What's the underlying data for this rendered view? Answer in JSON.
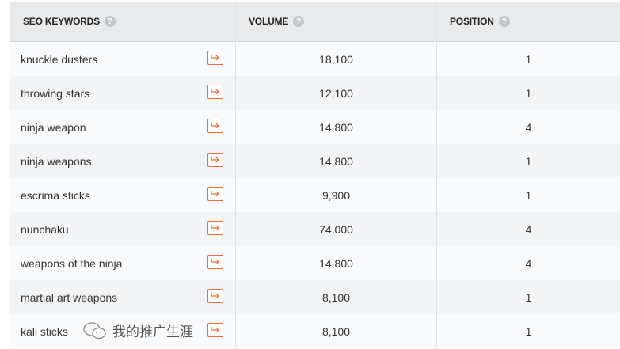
{
  "header": {
    "keyword": "SEO KEYWORDS",
    "volume": "VOLUME",
    "position": "POSITION",
    "help": "?"
  },
  "accent": "#f06a3c",
  "rows": [
    {
      "keyword": "knuckle dusters",
      "volume": "18,100",
      "position": "1"
    },
    {
      "keyword": "throwing stars",
      "volume": "12,100",
      "position": "1"
    },
    {
      "keyword": "ninja weapon",
      "volume": "14,800",
      "position": "4"
    },
    {
      "keyword": "ninja weapons",
      "volume": "14,800",
      "position": "1"
    },
    {
      "keyword": "escrima sticks",
      "volume": "9,900",
      "position": "1"
    },
    {
      "keyword": "nunchaku",
      "volume": "74,000",
      "position": "4"
    },
    {
      "keyword": "weapons of the ninja",
      "volume": "14,800",
      "position": "4"
    },
    {
      "keyword": "martial art weapons",
      "volume": "8,100",
      "position": "1"
    },
    {
      "keyword": "kali sticks",
      "volume": "8,100",
      "position": "1"
    }
  ],
  "watermark": {
    "text": "我的推广生涯",
    "icon": "wechat-icon"
  }
}
